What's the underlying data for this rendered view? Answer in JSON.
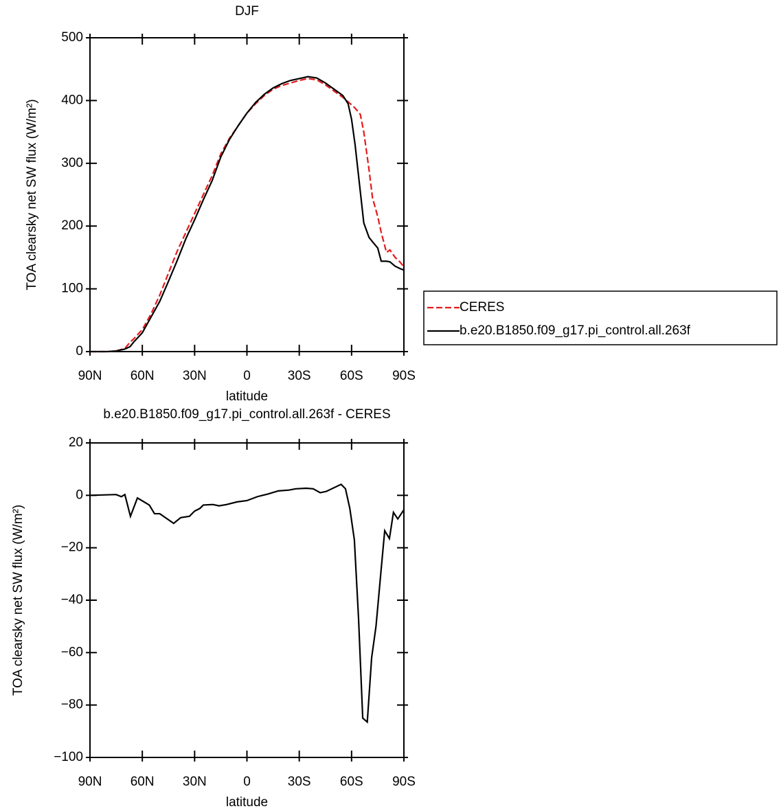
{
  "chart_data": [
    {
      "type": "line",
      "title": "DJF",
      "xlabel": "latitude",
      "ylabel": "TOA clearsky net SW flux (W/m²)",
      "x": [
        90,
        80,
        75,
        70,
        67,
        65,
        60,
        55,
        50,
        45,
        40,
        35,
        30,
        25,
        20,
        15,
        10,
        5,
        0,
        -5,
        -10,
        -15,
        -20,
        -25,
        -30,
        -35,
        -40,
        -45,
        -50,
        -55,
        -58,
        -60,
        -62,
        -65,
        -67,
        -70,
        -72,
        -75,
        -77,
        -80,
        -82,
        -85,
        -88,
        -90
      ],
      "series": [
        {
          "name": "CERES",
          "color": "#e41a1c",
          "dashed": true,
          "values": [
            0,
            0,
            1,
            5,
            15,
            20,
            35,
            60,
            90,
            125,
            160,
            190,
            220,
            250,
            280,
            315,
            340,
            360,
            380,
            395,
            408,
            418,
            424,
            428,
            432,
            435,
            433,
            425,
            415,
            405,
            398,
            393,
            388,
            378,
            350,
            290,
            245,
            215,
            190,
            158,
            162,
            150,
            142,
            135
          ]
        },
        {
          "name": "b.e20.B1850.f09_g17.pi_control.all.263f",
          "color": "#000000",
          "dashed": false,
          "values": [
            0,
            0,
            1,
            4,
            8,
            15,
            30,
            55,
            80,
            112,
            145,
            180,
            210,
            242,
            272,
            310,
            338,
            360,
            380,
            397,
            410,
            420,
            427,
            432,
            435,
            438,
            436,
            428,
            418,
            408,
            395,
            370,
            330,
            255,
            205,
            182,
            175,
            165,
            144,
            144,
            143,
            136,
            132,
            130
          ]
        }
      ],
      "xlim": [
        90,
        -90
      ],
      "xticks": [
        {
          "value": 90,
          "label": "90N"
        },
        {
          "value": 60,
          "label": "60N"
        },
        {
          "value": 30,
          "label": "30N"
        },
        0,
        {
          "value": -30,
          "label": "30S"
        },
        {
          "value": -60,
          "label": "60S"
        },
        {
          "value": -90,
          "label": "90S"
        }
      ],
      "ylim": [
        0,
        500
      ],
      "yticks": [
        0,
        100,
        200,
        300,
        400,
        500
      ],
      "legend": "right"
    },
    {
      "type": "line",
      "title": "b.e20.B1850.f09_g17.pi_control.all.263f - CERES",
      "xlabel": "latitude",
      "ylabel": "TOA clearsky net SW flux (W/m²)",
      "x": [
        90,
        75,
        72,
        70,
        66.8,
        62.8,
        56,
        53,
        50,
        42,
        38,
        33,
        30,
        27,
        25,
        19.5,
        16,
        11.6,
        5.7,
        0,
        -6,
        -12,
        -18,
        -24,
        -28,
        -34,
        -38,
        -42,
        -45.5,
        -54,
        -56.5,
        -59,
        -61.6,
        -64,
        -66.4,
        -69,
        -71.5,
        -74,
        -77,
        -79,
        -81.7,
        -84,
        -86.5,
        -90
      ],
      "series": [
        {
          "color": "#000000",
          "dashed": false,
          "values": [
            0,
            0.3,
            -0.5,
            0.3,
            -8,
            -1,
            -3.7,
            -7,
            -7,
            -10.7,
            -8.5,
            -8,
            -6,
            -5,
            -3.7,
            -3.5,
            -4,
            -3.5,
            -2.5,
            -2,
            -0.5,
            0.5,
            1.7,
            2,
            2.5,
            2.7,
            2.5,
            1,
            1.5,
            4.2,
            2.5,
            -5,
            -17,
            -47,
            -85,
            -86.5,
            -62,
            -50,
            -28,
            -13.5,
            -16.5,
            -6.5,
            -9,
            -5.5
          ]
        }
      ],
      "xlim": [
        90,
        -90
      ],
      "xticks": [
        {
          "value": 90,
          "label": "90N"
        },
        {
          "value": 60,
          "label": "60N"
        },
        {
          "value": 30,
          "label": "30N"
        },
        0,
        {
          "value": -30,
          "label": "30S"
        },
        {
          "value": -60,
          "label": "60S"
        },
        {
          "value": -90,
          "label": "90S"
        }
      ],
      "ylim": [
        -100,
        20
      ],
      "yticks": [
        20,
        0,
        {
          "value": -20,
          "label": "−20"
        },
        {
          "value": -40,
          "label": "−40"
        },
        {
          "value": -60,
          "label": "−60"
        },
        {
          "value": -80,
          "label": "−80"
        },
        {
          "value": -100,
          "label": "−100"
        }
      ]
    }
  ]
}
